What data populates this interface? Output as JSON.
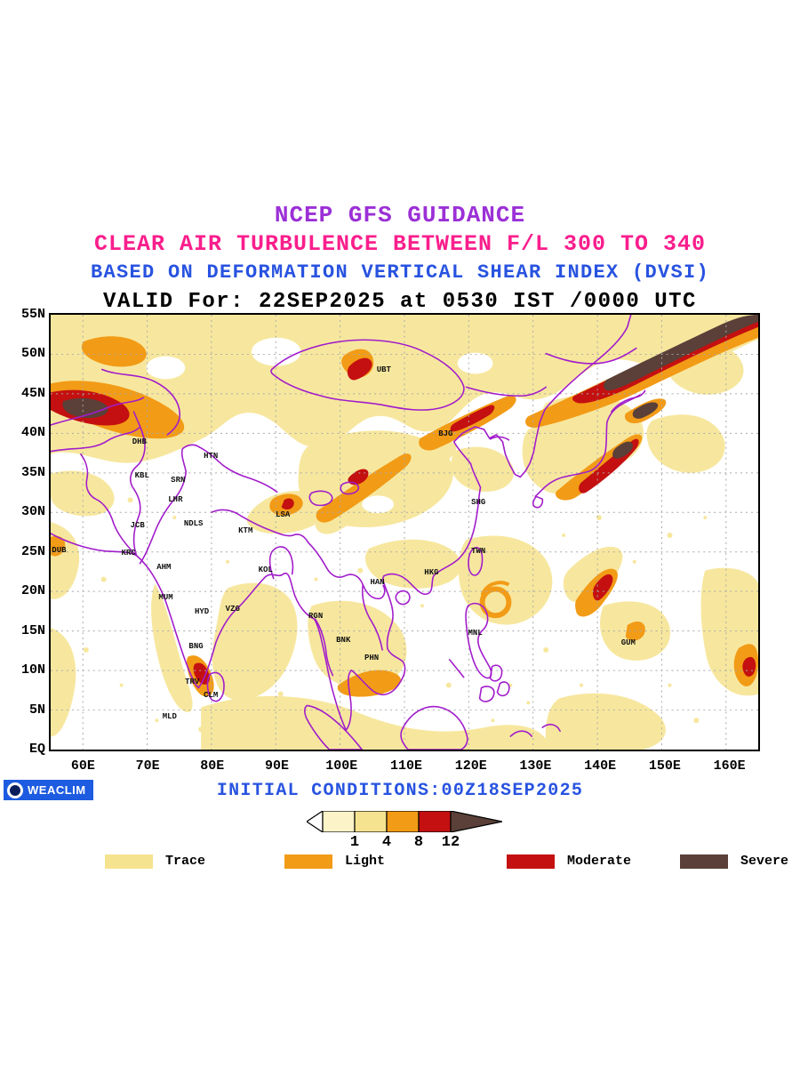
{
  "titles": {
    "line1": "NCEP GFS GUIDANCE",
    "line2": "CLEAR AIR TURBULENCE BETWEEN F/L 300 TO 340",
    "line3": "BASED ON DEFORMATION VERTICAL SHEAR INDEX (DVSI)",
    "line4": "VALID For: 22SEP2025 at 0530 IST /0000 UTC"
  },
  "footer": {
    "brand": "WEACLIM",
    "initial_conditions": "INITIAL CONDITIONS:00Z18SEP2025"
  },
  "colors": {
    "title1_purple": "#9B30D6",
    "title2_pink": "#FA1E8C",
    "title3_blue": "#2853E0",
    "coastline_purple": "#A21CCB",
    "trace": "#F7E79E",
    "light": "#F29B16",
    "moderate": "#C41010",
    "severe": "#5A4038",
    "badge_blue": "#1D5BE0",
    "colorbar_below_min": "#FCF3C8"
  },
  "axes": {
    "lat_ticks": [
      "55N",
      "50N",
      "45N",
      "40N",
      "35N",
      "30N",
      "25N",
      "20N",
      "15N",
      "10N",
      "5N",
      "EQ"
    ],
    "lon_ticks": [
      "60E",
      "70E",
      "80E",
      "90E",
      "100E",
      "110E",
      "120E",
      "130E",
      "140E",
      "150E",
      "160E"
    ]
  },
  "colorbar": {
    "tick_labels": [
      "1",
      "4",
      "8",
      "12"
    ],
    "segment_colors": [
      "#FFFFFF",
      "#FCF3C8",
      "#F6E38F",
      "#F29B16",
      "#C41010",
      "#5A4038"
    ]
  },
  "legend": {
    "items": [
      {
        "label": "Trace",
        "color": "#F6E38F"
      },
      {
        "label": "Light",
        "color": "#F29B16"
      },
      {
        "label": "Moderate",
        "color": "#C41010"
      },
      {
        "label": "Severe",
        "color": "#5A4038"
      }
    ]
  },
  "chart_data": {
    "type": "heatmap",
    "title": "NCEP GFS GUIDANCE",
    "subtitle": "CLEAR AIR TURBULENCE BETWEEN F/L 300 TO 340",
    "method": "BASED ON DEFORMATION VERTICAL SHEAR INDEX (DVSI)",
    "valid_time": "22SEP2025 at 0530 IST /0000 UTC",
    "initial_conditions": "00Z18SEP2025",
    "x_axis": {
      "ticks": [
        "60E",
        "70E",
        "80E",
        "90E",
        "100E",
        "110E",
        "120E",
        "130E",
        "140E",
        "150E",
        "160E"
      ],
      "min_lon": 55,
      "max_lon": 165
    },
    "y_axis": {
      "ticks": [
        "55N",
        "50N",
        "45N",
        "40N",
        "35N",
        "30N",
        "25N",
        "20N",
        "15N",
        "10N",
        "5N",
        "EQ"
      ],
      "min_lat": 0,
      "max_lat": 55
    },
    "intensity_scale": {
      "breakpoints": [
        1,
        4,
        8,
        12
      ],
      "categories": [
        {
          "label": "Trace",
          "range": "1-4",
          "color": "#F6E38F"
        },
        {
          "label": "Light",
          "range": "4-8",
          "color": "#F29B16"
        },
        {
          "label": "Moderate",
          "range": "8-12",
          "color": "#C41010"
        },
        {
          "label": "Severe",
          "range": ">12",
          "color": "#5A4038"
        }
      ]
    },
    "stations": [
      {
        "code": "DHB",
        "lon": 68.8,
        "lat": 38.9
      },
      {
        "code": "HTN",
        "lon": 79.9,
        "lat": 37.1
      },
      {
        "code": "KBL",
        "lon": 69.2,
        "lat": 34.6
      },
      {
        "code": "SRN",
        "lon": 74.8,
        "lat": 34.1
      },
      {
        "code": "LHR",
        "lon": 74.4,
        "lat": 31.6
      },
      {
        "code": "JCB",
        "lon": 68.5,
        "lat": 28.3
      },
      {
        "code": "NDLS",
        "lon": 77.2,
        "lat": 28.6
      },
      {
        "code": "KTM",
        "lon": 85.3,
        "lat": 27.7
      },
      {
        "code": "LSA",
        "lon": 91.1,
        "lat": 29.7
      },
      {
        "code": "UBT",
        "lon": 106.8,
        "lat": 48.0
      },
      {
        "code": "BJG",
        "lon": 116.4,
        "lat": 39.9
      },
      {
        "code": "SHG",
        "lon": 121.5,
        "lat": 31.3
      },
      {
        "code": "TWN",
        "lon": 121.5,
        "lat": 25.1
      },
      {
        "code": "HKG",
        "lon": 114.2,
        "lat": 22.4
      },
      {
        "code": "HAN",
        "lon": 105.8,
        "lat": 21.2
      },
      {
        "code": "DUB",
        "lon": 56.3,
        "lat": 25.2
      },
      {
        "code": "KRC",
        "lon": 67.1,
        "lat": 24.9
      },
      {
        "code": "AHM",
        "lon": 72.6,
        "lat": 23.1
      },
      {
        "code": "MUM",
        "lon": 72.9,
        "lat": 19.2
      },
      {
        "code": "HYD",
        "lon": 78.5,
        "lat": 17.4
      },
      {
        "code": "VZG",
        "lon": 83.3,
        "lat": 17.8
      },
      {
        "code": "KOL",
        "lon": 88.4,
        "lat": 22.7
      },
      {
        "code": "RGN",
        "lon": 96.2,
        "lat": 16.9
      },
      {
        "code": "BNG",
        "lon": 77.6,
        "lat": 13.0
      },
      {
        "code": "BNK",
        "lon": 100.5,
        "lat": 13.8
      },
      {
        "code": "PHN",
        "lon": 104.9,
        "lat": 11.6
      },
      {
        "code": "MNL",
        "lon": 121.0,
        "lat": 14.7
      },
      {
        "code": "GUM",
        "lon": 144.8,
        "lat": 13.5
      },
      {
        "code": "TRV",
        "lon": 77.0,
        "lat": 8.5
      },
      {
        "code": "CLM",
        "lon": 79.9,
        "lat": 6.9
      },
      {
        "code": "MLD",
        "lon": 73.5,
        "lat": 4.2
      }
    ],
    "turbulence_features": [
      "Severe/moderate band along 40-45N near west edge (55-65E)",
      "Long severe band from ~125E,46N to NE corner (165E,55N)",
      "Moderate-severe streak over Japan (~137-143E, 33-38N)",
      "Light band NE China toward Beijing (~112-120E, 40-44N)",
      "Light diagonal band central China (~95-112E, 30-38N)",
      "Light/moderate streak near Kerala and Sri Lanka (~77-81E, 6-11N)",
      "Tropical cyclone swirl east of Luzon (~124E, 18N)",
      "Widespread trace turbulence across South/Southeast Asia and West Pacific"
    ]
  }
}
